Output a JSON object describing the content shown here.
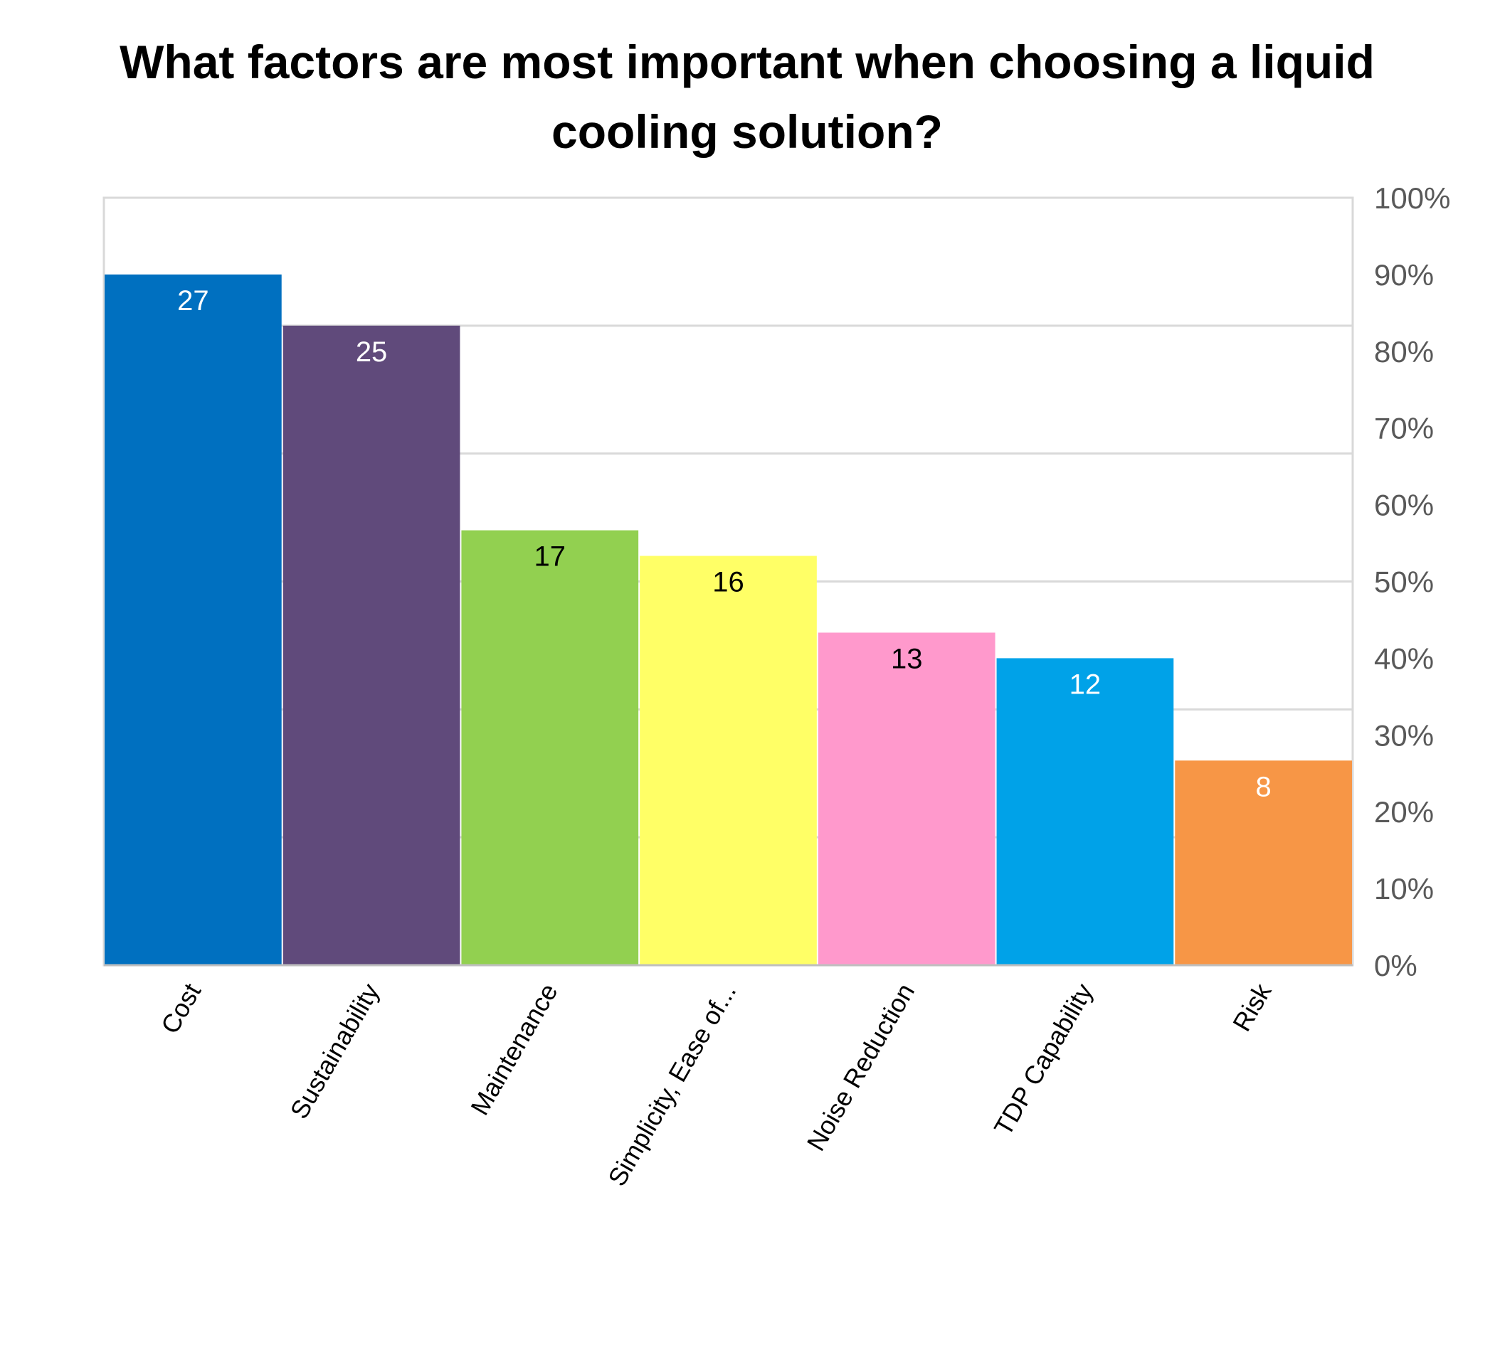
{
  "chart_data": {
    "type": "bar",
    "title": "What factors are most important when choosing a liquid cooling solution?",
    "categories": [
      "Cost",
      "Sustainability",
      "Maintenance",
      "Simplicity, Ease of...",
      "Noise Reduction",
      "TDP Capability",
      "Risk"
    ],
    "values": [
      27,
      25,
      17,
      16,
      13,
      12,
      8
    ],
    "data_labels": [
      "27",
      "25",
      "17",
      "16",
      "13",
      "12",
      "8"
    ],
    "bar_colors": [
      "#0070C0",
      "#604A7B",
      "#92D050",
      "#FFFF66",
      "#FF99CC",
      "#00A2E8",
      "#F79646"
    ],
    "label_colors": [
      "#FFFFFF",
      "#FFFFFF",
      "#000000",
      "#000000",
      "#000000",
      "#FFFFFF",
      "#FFFFFF"
    ],
    "secondary_axis": {
      "position": "right",
      "ticks": [
        "0%",
        "10%",
        "20%",
        "30%",
        "40%",
        "50%",
        "60%",
        "70%",
        "80%",
        "90%",
        "100%"
      ]
    },
    "ylim": [
      0,
      30
    ],
    "grid": true,
    "xlabel": "",
    "ylabel": ""
  }
}
